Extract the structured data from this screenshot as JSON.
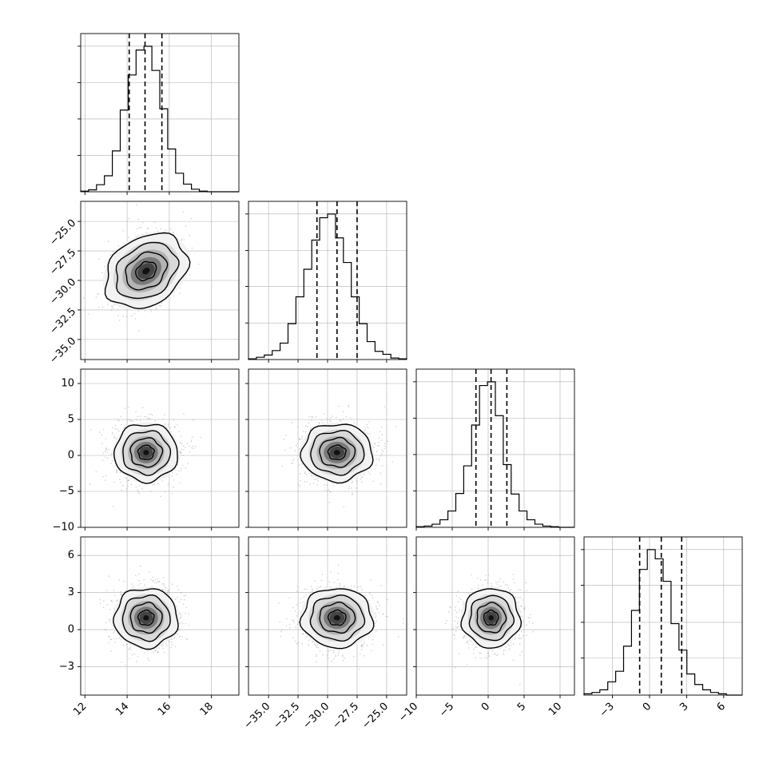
{
  "chart_data": {
    "type": "corner",
    "parameters": [
      {
        "range": [
          11.8,
          19.3
        ],
        "mean": 14.9,
        "sigma": 0.75,
        "quantiles": [
          14.1,
          14.85,
          15.65
        ],
        "ticks": [
          12,
          14,
          16,
          18
        ],
        "tick_labels": [
          "12",
          "14",
          "16",
          "18"
        ],
        "hist_values": [
          1,
          3,
          11,
          25,
          64,
          128,
          183,
          222,
          228,
          190,
          130,
          67,
          29,
          12,
          4,
          1,
          0,
          0,
          0,
          0
        ]
      },
      {
        "range": [
          -36.7,
          -23.3
        ],
        "mean": -29.2,
        "sigma": 1.5,
        "quantiles": [
          -30.9,
          -29.2,
          -27.5
        ],
        "ticks": [
          -35.0,
          -32.5,
          -30.0,
          -27.5,
          -25.0
        ],
        "tick_labels": [
          "−35.0",
          "−32.5",
          "−30.0",
          "−27.5",
          "−25.0"
        ],
        "hist_values": [
          1,
          3,
          6,
          12,
          22,
          48,
          84,
          121,
          160,
          190,
          195,
          163,
          130,
          84,
          48,
          24,
          11,
          7,
          2,
          1
        ]
      },
      {
        "range": [
          -10,
          12
        ],
        "mean": 0.4,
        "sigma": 2.0,
        "quantiles": [
          -1.7,
          0.4,
          2.6
        ],
        "ticks": [
          -10,
          -5,
          0,
          5,
          10
        ],
        "tick_labels": [
          "−10",
          "−5",
          "0",
          "5",
          "10"
        ],
        "hist_values": [
          1,
          2,
          5,
          12,
          26,
          54,
          98,
          163,
          226,
          232,
          178,
          100,
          53,
          26,
          12,
          5,
          2,
          1,
          0,
          0
        ]
      },
      {
        "range": [
          -5.3,
          7.5
        ],
        "mean": 0.95,
        "sigma": 1.2,
        "quantiles": [
          -0.8,
          0.95,
          2.6
        ],
        "ticks": [
          -3,
          0,
          3,
          6
        ],
        "tick_labels": [
          "−3",
          "0",
          "3",
          "6"
        ],
        "hist_values": [
          1,
          2,
          4,
          10,
          18,
          37,
          64,
          95,
          110,
          103,
          86,
          54,
          34,
          16,
          8,
          4,
          2,
          1,
          0,
          0
        ]
      }
    ],
    "title": "",
    "grid": true,
    "colors": {
      "density": "#000000",
      "points": "#9a9a9a",
      "grid": "#b0b0b0"
    }
  }
}
